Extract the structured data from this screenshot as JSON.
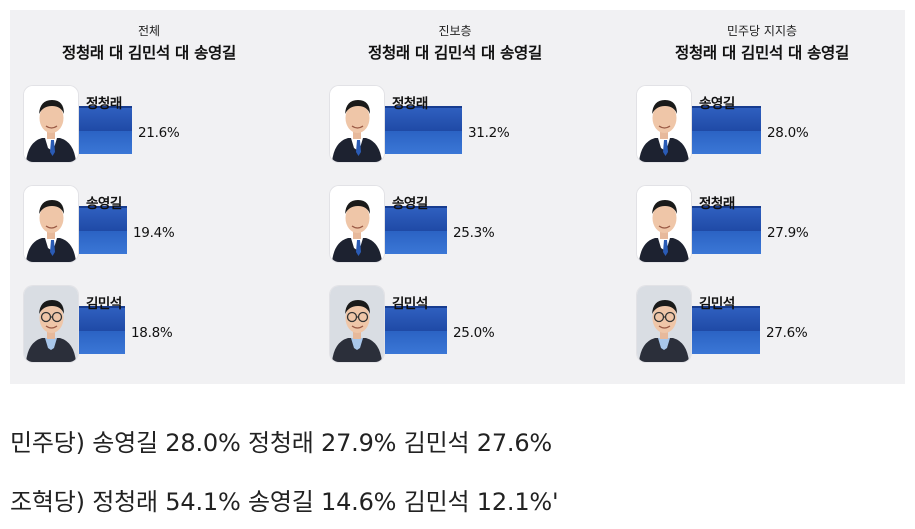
{
  "chart_data": [
    {
      "type": "bar",
      "subtitle": "전체",
      "title": "정청래 대 김민석 대 송영길",
      "categories": [
        "정청래",
        "송영길",
        "김민석"
      ],
      "values": [
        21.6,
        19.4,
        18.8
      ],
      "value_labels": [
        "21.6%",
        "19.4%",
        "18.8%"
      ],
      "photos": [
        "jcr",
        "syg",
        "kms"
      ]
    },
    {
      "type": "bar",
      "subtitle": "진보층",
      "title": "정청래 대 김민석 대 송영길",
      "categories": [
        "정청래",
        "송영길",
        "김민석"
      ],
      "values": [
        31.2,
        25.3,
        25.0
      ],
      "value_labels": [
        "31.2%",
        "25.3%",
        "25.0%"
      ],
      "photos": [
        "jcr",
        "syg",
        "kms"
      ]
    },
    {
      "type": "bar",
      "subtitle": "민주당 지지층",
      "title": "정청래 대 김민석 대 송영길",
      "categories": [
        "송영길",
        "정청래",
        "김민석"
      ],
      "values": [
        28.0,
        27.9,
        27.6
      ],
      "value_labels": [
        "28.0%",
        "27.9%",
        "27.6%"
      ],
      "photos": [
        "syg",
        "jcr",
        "kms"
      ]
    }
  ],
  "notes": [
    "민주당) 송영길 28.0% 정청래 27.9% 김민석 27.6%",
    "조혁당) 정청래 54.1% 송영길 14.6% 김민석 12.1%'"
  ],
  "colors": {
    "bar": "#2f5fbf",
    "bar_dark": "#173c8f",
    "panel_bg": "#f1f1f3"
  }
}
